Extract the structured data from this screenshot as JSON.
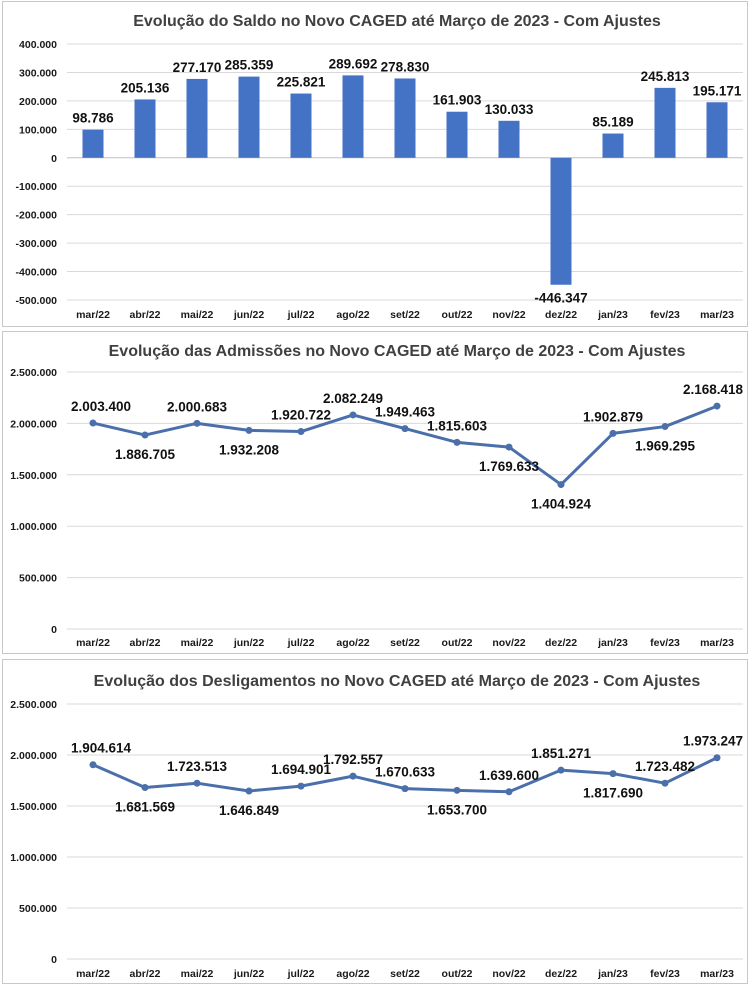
{
  "chart_data": [
    {
      "type": "bar",
      "title": "Evolução do Saldo no Novo CAGED até Março de 2023 - Com Ajustes",
      "xlabel": "",
      "ylabel": "",
      "categories": [
        "mar/22",
        "abr/22",
        "mai/22",
        "jun/22",
        "jul/22",
        "ago/22",
        "set/22",
        "out/22",
        "nov/22",
        "dez/22",
        "jan/23",
        "fev/23",
        "mar/23"
      ],
      "values": [
        98786,
        205136,
        277170,
        285359,
        225821,
        289692,
        278830,
        161903,
        130033,
        -446347,
        85189,
        245813,
        195171
      ],
      "value_labels": [
        "98.786",
        "205.136",
        "277.170",
        "285.359",
        "225.821",
        "289.692",
        "278.830",
        "161.903",
        "130.033",
        "-446.347",
        "85.189",
        "245.813",
        "195.171"
      ],
      "ylim": [
        -500000,
        400000
      ],
      "yticks": [
        -500000,
        -400000,
        -300000,
        -200000,
        -100000,
        0,
        100000,
        200000,
        300000,
        400000
      ],
      "ytick_labels": [
        "-500.000",
        "-400.000",
        "-300.000",
        "-200.000",
        "-100.000",
        "0",
        "100.000",
        "200.000",
        "300.000",
        "400.000"
      ],
      "grid": true,
      "color": "#4472c4"
    },
    {
      "type": "line",
      "title": "Evolução das Admissões no Novo CAGED até Março de 2023 - Com Ajustes",
      "xlabel": "",
      "ylabel": "",
      "categories": [
        "mar/22",
        "abr/22",
        "mai/22",
        "jun/22",
        "jul/22",
        "ago/22",
        "set/22",
        "out/22",
        "nov/22",
        "dez/22",
        "jan/23",
        "fev/23",
        "mar/23"
      ],
      "values": [
        2003400,
        1886705,
        2000683,
        1932208,
        1920722,
        2082249,
        1949463,
        1815603,
        1769633,
        1404924,
        1902879,
        1969295,
        2168418
      ],
      "value_labels": [
        "2.003.400",
        "1.886.705",
        "2.000.683",
        "1.932.208",
        "1.920.722",
        "2.082.249",
        "1.949.463",
        "1.815.603",
        "1.769.633",
        "1.404.924",
        "1.902.879",
        "1.969.295",
        "2.168.418"
      ],
      "label_positions": [
        "above",
        "below",
        "above",
        "below",
        "above",
        "above",
        "above",
        "above",
        "below",
        "below",
        "above",
        "below",
        "above"
      ],
      "ylim": [
        0,
        2500000
      ],
      "yticks": [
        0,
        500000,
        1000000,
        1500000,
        2000000,
        2500000
      ],
      "ytick_labels": [
        "0",
        "500.000",
        "1.000.000",
        "1.500.000",
        "2.000.000",
        "2.500.000"
      ],
      "grid": true,
      "color": "#4a6faa"
    },
    {
      "type": "line",
      "title": "Evolução dos Desligamentos no Novo CAGED até Março de 2023 - Com Ajustes",
      "xlabel": "",
      "ylabel": "",
      "categories": [
        "mar/22",
        "abr/22",
        "mai/22",
        "jun/22",
        "jul/22",
        "ago/22",
        "set/22",
        "out/22",
        "nov/22",
        "dez/22",
        "jan/23",
        "fev/23",
        "mar/23"
      ],
      "values": [
        1904614,
        1681569,
        1723513,
        1646849,
        1694901,
        1792557,
        1670633,
        1653700,
        1639600,
        1851271,
        1817690,
        1723482,
        1973247
      ],
      "value_labels": [
        "1.904.614",
        "1.681.569",
        "1.723.513",
        "1.646.849",
        "1.694.901",
        "1.792.557",
        "1.670.633",
        "1.653.700",
        "1.639.600",
        "1.851.271",
        "1.817.690",
        "1.723.482",
        "1.973.247"
      ],
      "label_positions": [
        "above",
        "below",
        "above",
        "below",
        "above",
        "above",
        "above",
        "below",
        "above",
        "above",
        "below",
        "above",
        "above"
      ],
      "ylim": [
        0,
        2500000
      ],
      "yticks": [
        0,
        500000,
        1000000,
        1500000,
        2000000,
        2500000
      ],
      "ytick_labels": [
        "0",
        "500.000",
        "1.000.000",
        "1.500.000",
        "2.000.000",
        "2.500.000"
      ],
      "grid": true,
      "color": "#4a6faa"
    }
  ]
}
